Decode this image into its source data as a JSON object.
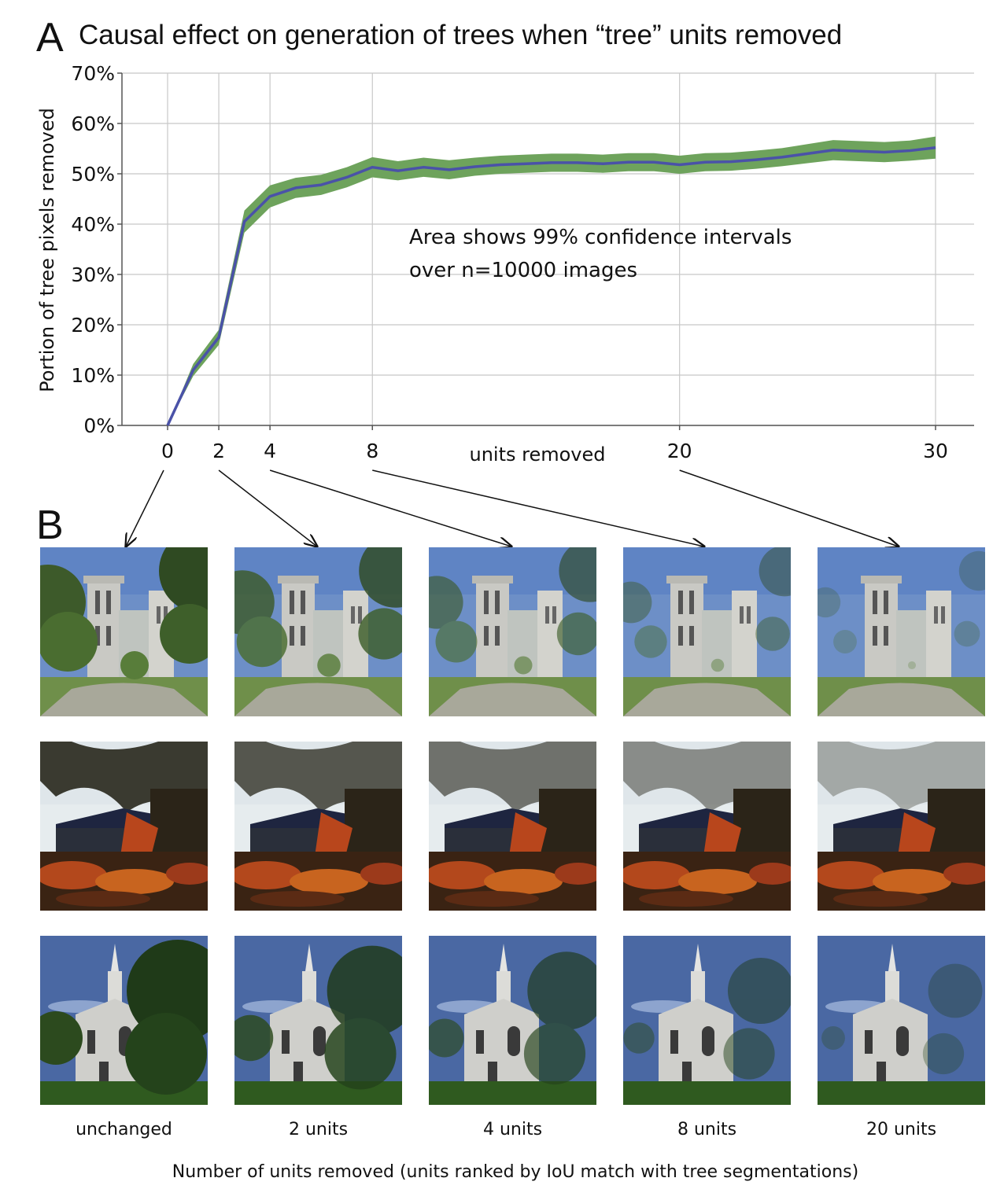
{
  "panelA": {
    "letter": "A",
    "title": "Causal effect on generation of trees when “tree” units removed"
  },
  "chart_data": {
    "type": "line",
    "title": "Causal effect on generation of trees when “tree” units removed",
    "xlabel": "units removed",
    "ylabel": "Portion of tree pixels removed",
    "x_ticks": [
      0,
      2,
      4,
      8,
      20,
      30
    ],
    "y_ticks": [
      0,
      10,
      20,
      30,
      40,
      50,
      60,
      70
    ],
    "y_tick_labels": [
      "0%",
      "10%",
      "20%",
      "30%",
      "40%",
      "50%",
      "60%",
      "70%"
    ],
    "xlim": [
      0,
      30
    ],
    "ylim": [
      0,
      70
    ],
    "grid": true,
    "annotation": [
      "Area shows 99% confidence intervals",
      "over n=10000 images"
    ],
    "series": [
      {
        "x": [
          0,
          1,
          2,
          3,
          4,
          5,
          6,
          7,
          8,
          9,
          10,
          11,
          12,
          13,
          14,
          15,
          16,
          17,
          18,
          19,
          20,
          21,
          22,
          23,
          24,
          25,
          26,
          27,
          28,
          29,
          30
        ],
        "y": [
          0,
          11,
          17.5,
          40.5,
          45.5,
          47.2,
          47.8,
          49.3,
          51.3,
          50.6,
          51.3,
          50.8,
          51.4,
          51.8,
          52.0,
          52.2,
          52.2,
          52.0,
          52.3,
          52.3,
          51.8,
          52.3,
          52.4,
          52.8,
          53.3,
          54.0,
          54.7,
          54.5,
          54.3,
          54.6,
          55.2
        ],
        "ci": [
          0,
          1.2,
          1.5,
          2.2,
          2.2,
          2.0,
          2.0,
          2.0,
          2.0,
          1.9,
          1.9,
          1.9,
          1.8,
          1.8,
          1.8,
          1.8,
          1.8,
          1.8,
          1.8,
          1.8,
          1.8,
          1.8,
          1.8,
          1.8,
          1.8,
          1.9,
          2.0,
          2.0,
          2.0,
          2.0,
          2.2
        ]
      }
    ],
    "colors": {
      "line": "#4a52a8",
      "band": "#6ea35c",
      "grid": "#c8c8c8",
      "axis": "#555555"
    }
  },
  "panelB": {
    "letter": "B",
    "captions": [
      "unchanged",
      "2 units",
      "4 units",
      "8 units",
      "20 units"
    ],
    "rows": [
      "cathedral",
      "autumn-church",
      "white-chapel"
    ],
    "removed_counts": [
      0,
      2,
      4,
      8,
      20
    ],
    "bottom_label": "Number of units removed (units ranked by IoU match with tree segmentations)"
  }
}
